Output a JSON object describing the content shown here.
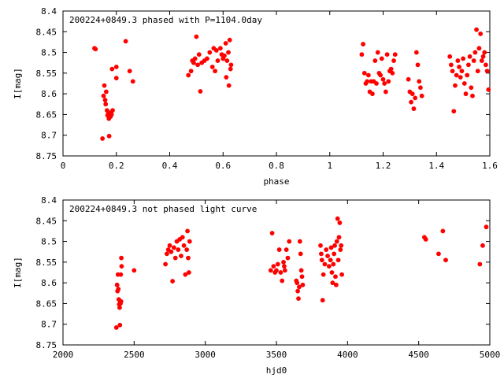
{
  "chart_data": [
    {
      "type": "scatter",
      "title": "200224+0849.3 phased with P=1104.0day",
      "xlabel": "phase",
      "ylabel": "I[mag]",
      "xlim": [
        0,
        1.6
      ],
      "ylim": [
        8.75,
        8.4
      ],
      "y_inverted": true,
      "grid": false,
      "marker_color": "#ff0000",
      "x_ticks": [
        "0",
        "0.2",
        "0.4",
        "0.6",
        "0.8",
        "1",
        "1.2",
        "1.4",
        "1.6"
      ],
      "y_ticks": [
        "8.4",
        "8.45",
        "8.5",
        "8.55",
        "8.6",
        "8.65",
        "8.7",
        "8.75"
      ],
      "points": [
        [
          0.118,
          8.49
        ],
        [
          0.122,
          8.492
        ],
        [
          0.148,
          8.708
        ],
        [
          0.152,
          8.605
        ],
        [
          0.155,
          8.58
        ],
        [
          0.158,
          8.615
        ],
        [
          0.16,
          8.625
        ],
        [
          0.162,
          8.595
        ],
        [
          0.165,
          8.64
        ],
        [
          0.167,
          8.652
        ],
        [
          0.17,
          8.645
        ],
        [
          0.172,
          8.66
        ],
        [
          0.173,
          8.702
        ],
        [
          0.175,
          8.648
        ],
        [
          0.178,
          8.655
        ],
        [
          0.18,
          8.645
        ],
        [
          0.182,
          8.65
        ],
        [
          0.184,
          8.54
        ],
        [
          0.186,
          8.64
        ],
        [
          0.2,
          8.535
        ],
        [
          0.2,
          8.562
        ],
        [
          0.235,
          8.473
        ],
        [
          0.25,
          8.545
        ],
        [
          0.262,
          8.57
        ],
        [
          0.47,
          8.555
        ],
        [
          0.48,
          8.545
        ],
        [
          0.485,
          8.52
        ],
        [
          0.49,
          8.525
        ],
        [
          0.495,
          8.515
        ],
        [
          0.5,
          8.462
        ],
        [
          0.505,
          8.53
        ],
        [
          0.51,
          8.505
        ],
        [
          0.515,
          8.594
        ],
        [
          0.52,
          8.525
        ],
        [
          0.53,
          8.52
        ],
        [
          0.54,
          8.515
        ],
        [
          0.55,
          8.5
        ],
        [
          0.56,
          8.535
        ],
        [
          0.565,
          8.49
        ],
        [
          0.57,
          8.545
        ],
        [
          0.575,
          8.495
        ],
        [
          0.58,
          8.52
        ],
        [
          0.59,
          8.49
        ],
        [
          0.595,
          8.505
        ],
        [
          0.6,
          8.515
        ],
        [
          0.605,
          8.508
        ],
        [
          0.61,
          8.478
        ],
        [
          0.612,
          8.56
        ],
        [
          0.615,
          8.52
        ],
        [
          0.62,
          8.5
        ],
        [
          0.622,
          8.58
        ],
        [
          0.625,
          8.47
        ],
        [
          0.628,
          8.54
        ],
        [
          0.63,
          8.53
        ],
        [
          1.12,
          8.505
        ],
        [
          1.125,
          8.48
        ],
        [
          1.13,
          8.55
        ],
        [
          1.135,
          8.575
        ],
        [
          1.14,
          8.57
        ],
        [
          1.145,
          8.555
        ],
        [
          1.15,
          8.595
        ],
        [
          1.155,
          8.57
        ],
        [
          1.16,
          8.6
        ],
        [
          1.165,
          8.57
        ],
        [
          1.17,
          8.52
        ],
        [
          1.175,
          8.575
        ],
        [
          1.18,
          8.5
        ],
        [
          1.185,
          8.55
        ],
        [
          1.19,
          8.555
        ],
        [
          1.195,
          8.515
        ],
        [
          1.2,
          8.565
        ],
        [
          1.205,
          8.575
        ],
        [
          1.21,
          8.595
        ],
        [
          1.215,
          8.505
        ],
        [
          1.22,
          8.57
        ],
        [
          1.225,
          8.545
        ],
        [
          1.23,
          8.54
        ],
        [
          1.235,
          8.55
        ],
        [
          1.24,
          8.52
        ],
        [
          1.245,
          8.505
        ],
        [
          1.295,
          8.565
        ],
        [
          1.3,
          8.595
        ],
        [
          1.305,
          8.62
        ],
        [
          1.31,
          8.6
        ],
        [
          1.315,
          8.636
        ],
        [
          1.32,
          8.61
        ],
        [
          1.325,
          8.5
        ],
        [
          1.33,
          8.53
        ],
        [
          1.335,
          8.57
        ],
        [
          1.34,
          8.585
        ],
        [
          1.345,
          8.605
        ],
        [
          1.45,
          8.51
        ],
        [
          1.455,
          8.53
        ],
        [
          1.46,
          8.545
        ],
        [
          1.465,
          8.642
        ],
        [
          1.47,
          8.58
        ],
        [
          1.475,
          8.555
        ],
        [
          1.48,
          8.52
        ],
        [
          1.485,
          8.535
        ],
        [
          1.49,
          8.56
        ],
        [
          1.495,
          8.545
        ],
        [
          1.5,
          8.515
        ],
        [
          1.505,
          8.575
        ],
        [
          1.51,
          8.6
        ],
        [
          1.515,
          8.555
        ],
        [
          1.52,
          8.53
        ],
        [
          1.525,
          8.51
        ],
        [
          1.53,
          8.585
        ],
        [
          1.535,
          8.605
        ],
        [
          1.54,
          8.52
        ],
        [
          1.545,
          8.5
        ],
        [
          1.55,
          8.445
        ],
        [
          1.555,
          8.545
        ],
        [
          1.56,
          8.49
        ],
        [
          1.565,
          8.455
        ],
        [
          1.57,
          8.52
        ],
        [
          1.575,
          8.51
        ],
        [
          1.58,
          8.5
        ],
        [
          1.585,
          8.53
        ],
        [
          1.59,
          8.545
        ],
        [
          1.595,
          8.59
        ]
      ]
    },
    {
      "type": "scatter",
      "title": "200224+0849.3 not phased light curve",
      "xlabel": "hjd0",
      "ylabel": "I[mag]",
      "xlim": [
        2000,
        5000
      ],
      "ylim": [
        8.75,
        8.4
      ],
      "y_inverted": true,
      "grid": false,
      "marker_color": "#ff0000",
      "x_ticks": [
        "2000",
        "2500",
        "3000",
        "3500",
        "4000",
        "4500",
        "5000"
      ],
      "y_ticks": [
        "8.4",
        "8.45",
        "8.5",
        "8.55",
        "8.6",
        "8.65",
        "8.7",
        "8.75"
      ],
      "points": [
        [
          2375,
          8.708
        ],
        [
          2380,
          8.605
        ],
        [
          2383,
          8.62
        ],
        [
          2386,
          8.58
        ],
        [
          2389,
          8.615
        ],
        [
          2392,
          8.64
        ],
        [
          2395,
          8.652
        ],
        [
          2398,
          8.66
        ],
        [
          2400,
          8.702
        ],
        [
          2402,
          8.645
        ],
        [
          2404,
          8.65
        ],
        [
          2406,
          8.58
        ],
        [
          2408,
          8.645
        ],
        [
          2410,
          8.54
        ],
        [
          2412,
          8.56
        ],
        [
          2500,
          8.57
        ],
        [
          2720,
          8.555
        ],
        [
          2730,
          8.53
        ],
        [
          2740,
          8.52
        ],
        [
          2750,
          8.51
        ],
        [
          2760,
          8.525
        ],
        [
          2770,
          8.596
        ],
        [
          2780,
          8.515
        ],
        [
          2790,
          8.54
        ],
        [
          2800,
          8.5
        ],
        [
          2810,
          8.52
        ],
        [
          2820,
          8.495
        ],
        [
          2830,
          8.535
        ],
        [
          2840,
          8.49
        ],
        [
          2850,
          8.51
        ],
        [
          2860,
          8.58
        ],
        [
          2870,
          8.52
        ],
        [
          2875,
          8.475
        ],
        [
          2880,
          8.54
        ],
        [
          2885,
          8.575
        ],
        [
          2890,
          8.5
        ],
        [
          3460,
          8.57
        ],
        [
          3470,
          8.48
        ],
        [
          3480,
          8.56
        ],
        [
          3490,
          8.575
        ],
        [
          3500,
          8.57
        ],
        [
          3510,
          8.555
        ],
        [
          3520,
          8.52
        ],
        [
          3530,
          8.575
        ],
        [
          3540,
          8.595
        ],
        [
          3550,
          8.55
        ],
        [
          3555,
          8.56
        ],
        [
          3560,
          8.57
        ],
        [
          3570,
          8.52
        ],
        [
          3580,
          8.54
        ],
        [
          3590,
          8.5
        ],
        [
          3640,
          8.595
        ],
        [
          3645,
          8.6
        ],
        [
          3650,
          8.62
        ],
        [
          3655,
          8.638
        ],
        [
          3660,
          8.61
        ],
        [
          3665,
          8.5
        ],
        [
          3670,
          8.53
        ],
        [
          3675,
          8.57
        ],
        [
          3680,
          8.585
        ],
        [
          3685,
          8.605
        ],
        [
          3810,
          8.51
        ],
        [
          3815,
          8.53
        ],
        [
          3820,
          8.545
        ],
        [
          3825,
          8.642
        ],
        [
          3830,
          8.58
        ],
        [
          3840,
          8.555
        ],
        [
          3850,
          8.52
        ],
        [
          3860,
          8.535
        ],
        [
          3870,
          8.56
        ],
        [
          3880,
          8.545
        ],
        [
          3885,
          8.515
        ],
        [
          3890,
          8.575
        ],
        [
          3895,
          8.6
        ],
        [
          3900,
          8.555
        ],
        [
          3905,
          8.53
        ],
        [
          3910,
          8.51
        ],
        [
          3915,
          8.585
        ],
        [
          3920,
          8.605
        ],
        [
          3925,
          8.5
        ],
        [
          3930,
          8.445
        ],
        [
          3935,
          8.545
        ],
        [
          3940,
          8.49
        ],
        [
          3945,
          8.455
        ],
        [
          3950,
          8.52
        ],
        [
          3955,
          8.51
        ],
        [
          3960,
          8.58
        ],
        [
          4540,
          8.49
        ],
        [
          4550,
          8.495
        ],
        [
          4640,
          8.53
        ],
        [
          4670,
          8.475
        ],
        [
          4690,
          8.545
        ],
        [
          4930,
          8.555
        ],
        [
          4950,
          8.51
        ],
        [
          4975,
          8.465
        ]
      ]
    }
  ]
}
